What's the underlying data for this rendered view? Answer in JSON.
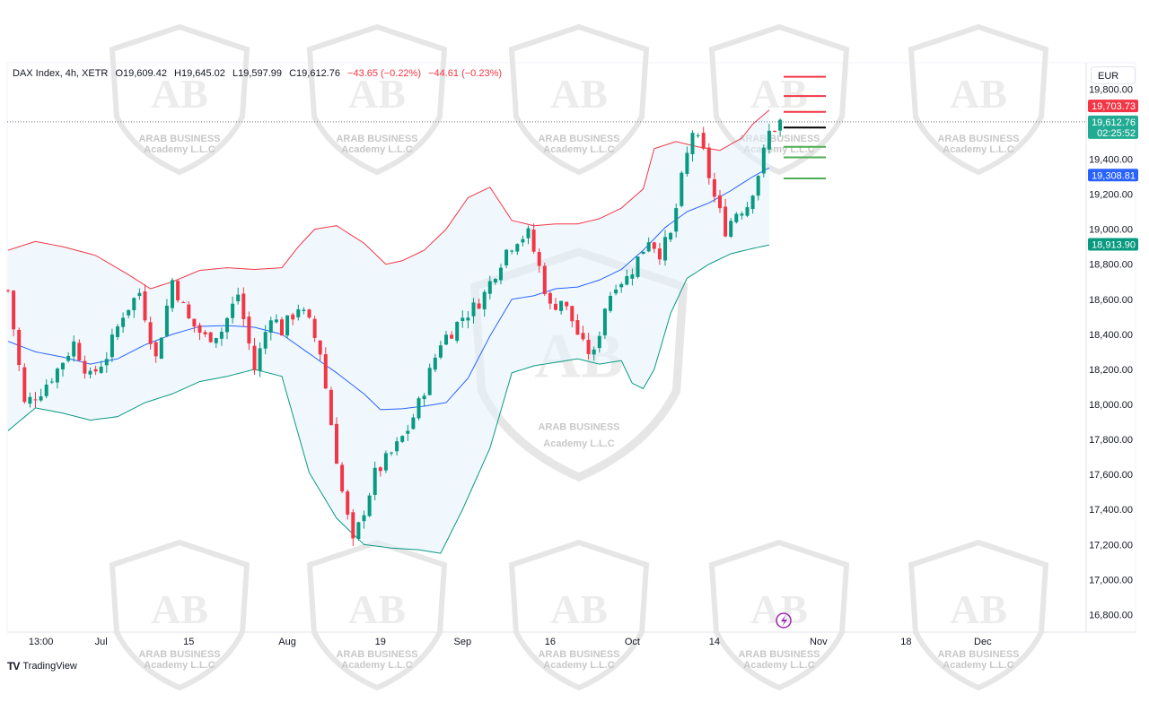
{
  "legend": {
    "symbol": "DAX Index, 4h, XETR",
    "open": "O19,609.42",
    "high": "H19,645.02",
    "low": "L19,597.99",
    "close": "C19,612.76",
    "change": "−43.65 (−0.22%)",
    "change2": "−44.61 (−0.23%)"
  },
  "currency": "EUR",
  "branding": "TradingView",
  "watermark": {
    "text": "ARAB BUSINESS",
    "subtext": "Academy L.L.C",
    "letters": "AB"
  },
  "price_tags": {
    "upper": {
      "value": "19,703.73",
      "color": "#f23645"
    },
    "last": {
      "value": "19,612.76",
      "sub": "02:25:52",
      "color": "#22ab94"
    },
    "middle": {
      "value": "19,308.81",
      "color": "#2962ff"
    },
    "lower": {
      "value": "18,913.90",
      "color": "#089981"
    }
  },
  "colors": {
    "up": "#089981",
    "down": "#f23645",
    "band_upper": "#f23645",
    "band_basis": "#2962ff",
    "band_lower": "#089981",
    "band_fill": "#e3f2fd"
  },
  "chart_data": {
    "type": "candlestick",
    "title": "DAX Index, 4h, XETR",
    "ylim": [
      16700,
      19950
    ],
    "y_ticks": [
      16800,
      17000,
      17200,
      17400,
      17600,
      17800,
      18000,
      18200,
      18400,
      18600,
      18800,
      19000,
      19200,
      19400,
      19800
    ],
    "y_tick_labels": [
      "16,800.00",
      "17,000.00",
      "17,200.00",
      "17,400.00",
      "17,600.00",
      "17,800.00",
      "18,000.00",
      "18,200.00",
      "18,400.00",
      "18,600.00",
      "18,800.00",
      "19,000.00",
      "19,200.00",
      "19,400.00",
      "19,800.00"
    ],
    "x_tick_labels": [
      "13:00",
      "Jul",
      "15",
      "Aug",
      "19",
      "Sep",
      "16",
      "Oct",
      "14",
      "Nov",
      "18",
      "Dec"
    ],
    "x_tick_index": [
      6,
      17,
      33,
      51,
      68,
      83,
      99,
      114,
      129,
      148,
      164,
      178
    ],
    "bars_count": 142,
    "last_close": 19612.76,
    "bollinger_upper": [
      [
        0,
        18880
      ],
      [
        5,
        18930
      ],
      [
        10,
        18900
      ],
      [
        16,
        18850
      ],
      [
        22,
        18740
      ],
      [
        26,
        18660
      ],
      [
        30,
        18700
      ],
      [
        35,
        18765
      ],
      [
        40,
        18780
      ],
      [
        45,
        18770
      ],
      [
        50,
        18780
      ],
      [
        53,
        18900
      ],
      [
        56,
        19000
      ],
      [
        60,
        19020
      ],
      [
        65,
        18920
      ],
      [
        69,
        18800
      ],
      [
        72,
        18820
      ],
      [
        76,
        18880
      ],
      [
        80,
        19000
      ],
      [
        84,
        19180
      ],
      [
        88,
        19240
      ],
      [
        92,
        19050
      ],
      [
        96,
        19020
      ],
      [
        100,
        19030
      ],
      [
        104,
        19030
      ],
      [
        108,
        19060
      ],
      [
        112,
        19120
      ],
      [
        116,
        19230
      ],
      [
        118,
        19460
      ],
      [
        122,
        19500
      ],
      [
        126,
        19470
      ],
      [
        130,
        19450
      ],
      [
        134,
        19520
      ],
      [
        136,
        19600
      ],
      [
        139,
        19680
      ]
    ],
    "bollinger_basis": [
      [
        0,
        18360
      ],
      [
        5,
        18300
      ],
      [
        10,
        18270
      ],
      [
        15,
        18230
      ],
      [
        20,
        18260
      ],
      [
        25,
        18340
      ],
      [
        30,
        18400
      ],
      [
        35,
        18445
      ],
      [
        40,
        18450
      ],
      [
        45,
        18440
      ],
      [
        50,
        18400
      ],
      [
        55,
        18290
      ],
      [
        60,
        18180
      ],
      [
        65,
        18060
      ],
      [
        68,
        17970
      ],
      [
        72,
        17975
      ],
      [
        76,
        17990
      ],
      [
        80,
        18010
      ],
      [
        84,
        18150
      ],
      [
        88,
        18390
      ],
      [
        92,
        18600
      ],
      [
        96,
        18620
      ],
      [
        100,
        18660
      ],
      [
        104,
        18670
      ],
      [
        108,
        18710
      ],
      [
        112,
        18770
      ],
      [
        116,
        18880
      ],
      [
        120,
        19010
      ],
      [
        124,
        19100
      ],
      [
        128,
        19150
      ],
      [
        132,
        19220
      ],
      [
        136,
        19300
      ],
      [
        139,
        19350
      ]
    ],
    "bollinger_lower": [
      [
        0,
        17850
      ],
      [
        5,
        17980
      ],
      [
        10,
        17950
      ],
      [
        15,
        17910
      ],
      [
        20,
        17930
      ],
      [
        25,
        18010
      ],
      [
        30,
        18060
      ],
      [
        35,
        18130
      ],
      [
        40,
        18160
      ],
      [
        45,
        18200
      ],
      [
        50,
        18160
      ],
      [
        55,
        17610
      ],
      [
        60,
        17350
      ],
      [
        65,
        17200
      ],
      [
        70,
        17180
      ],
      [
        75,
        17170
      ],
      [
        79,
        17150
      ],
      [
        83,
        17400
      ],
      [
        88,
        17750
      ],
      [
        92,
        18180
      ],
      [
        96,
        18220
      ],
      [
        100,
        18240
      ],
      [
        104,
        18260
      ],
      [
        108,
        18230
      ],
      [
        112,
        18250
      ],
      [
        114,
        18120
      ],
      [
        116,
        18090
      ],
      [
        118,
        18200
      ],
      [
        121,
        18520
      ],
      [
        124,
        18720
      ],
      [
        128,
        18800
      ],
      [
        132,
        18860
      ],
      [
        136,
        18890
      ],
      [
        139,
        18910
      ]
    ],
    "close_path": [
      [
        0,
        18650
      ],
      [
        3,
        18000
      ],
      [
        6,
        18080
      ],
      [
        9,
        18200
      ],
      [
        12,
        18350
      ],
      [
        15,
        18150
      ],
      [
        18,
        18280
      ],
      [
        21,
        18520
      ],
      [
        24,
        18640
      ],
      [
        27,
        18260
      ],
      [
        30,
        18710
      ],
      [
        33,
        18480
      ],
      [
        36,
        18380
      ],
      [
        39,
        18420
      ],
      [
        42,
        18630
      ],
      [
        45,
        18200
      ],
      [
        48,
        18520
      ],
      [
        50,
        18420
      ],
      [
        53,
        18560
      ],
      [
        55,
        18460
      ],
      [
        57,
        18300
      ],
      [
        59,
        17890
      ],
      [
        61,
        17500
      ],
      [
        63,
        17200
      ],
      [
        65,
        17400
      ],
      [
        67,
        17600
      ],
      [
        69,
        17680
      ],
      [
        71,
        17760
      ],
      [
        73,
        17860
      ],
      [
        75,
        18000
      ],
      [
        77,
        18180
      ],
      [
        79,
        18360
      ],
      [
        81,
        18420
      ],
      [
        83,
        18500
      ],
      [
        85,
        18550
      ],
      [
        87,
        18630
      ],
      [
        89,
        18760
      ],
      [
        91,
        18880
      ],
      [
        93,
        18950
      ],
      [
        95,
        18970
      ],
      [
        97,
        18780
      ],
      [
        99,
        18550
      ],
      [
        101,
        18600
      ],
      [
        103,
        18480
      ],
      [
        105,
        18330
      ],
      [
        107,
        18280
      ],
      [
        109,
        18560
      ],
      [
        111,
        18700
      ],
      [
        113,
        18720
      ],
      [
        115,
        18830
      ],
      [
        117,
        18950
      ],
      [
        119,
        18870
      ],
      [
        121,
        18960
      ],
      [
        123,
        19280
      ],
      [
        125,
        19560
      ],
      [
        127,
        19430
      ],
      [
        129,
        19180
      ],
      [
        131,
        19000
      ],
      [
        133,
        19100
      ],
      [
        135,
        19140
      ],
      [
        137,
        19320
      ],
      [
        139,
        19550
      ],
      [
        141,
        19612
      ]
    ],
    "horizontal_levels": [
      19870,
      19760,
      19670,
      19580,
      19470,
      19410,
      19290
    ]
  }
}
